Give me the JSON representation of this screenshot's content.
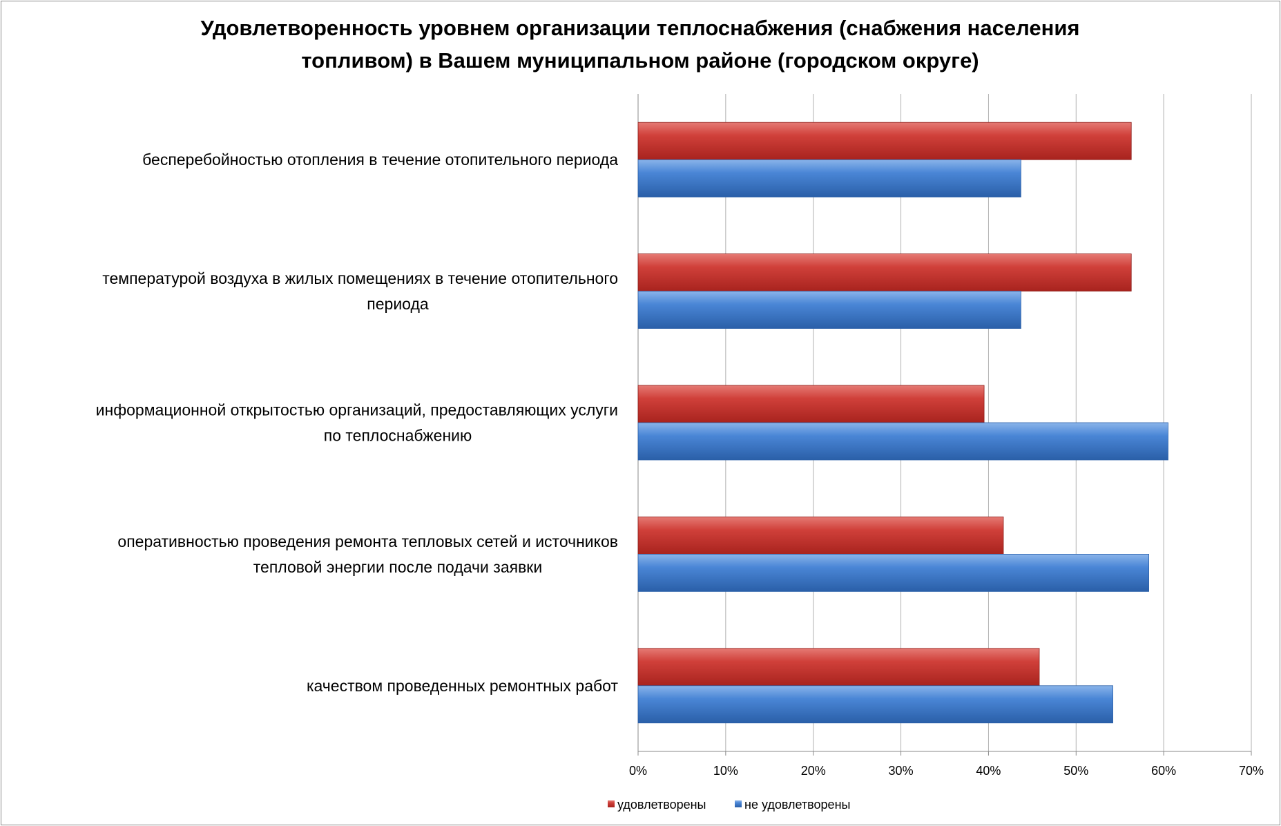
{
  "chart_data": {
    "type": "bar",
    "orientation": "horizontal",
    "title": [
      "Удовлетворенность уровнем организации теплоснабжения (снабжения населения",
      "топливом) в Вашем муниципальном районе (городском округе)"
    ],
    "categories": [
      [
        "бесперебойностью  отопления в течение отопительного периода"
      ],
      [
        "температурой  воздуха в жилых помещениях в течение отопительного",
        "периода"
      ],
      [
        "информационной открытостью  организаций, предоставляющих услуги",
        "по теплоснабжению"
      ],
      [
        "оперативностью проведения ремонта тепловых сетей и источников",
        "тепловой энергии после подачи заявки"
      ],
      [
        "качеством проведенных ремонтных работ"
      ]
    ],
    "series": [
      {
        "name": "удовлетворены",
        "color": "#C0392B",
        "values": [
          56.3,
          56.3,
          39.5,
          41.7,
          45.8
        ]
      },
      {
        "name": "не удовлетворены",
        "color": "#3B78C8",
        "values": [
          43.7,
          43.7,
          60.5,
          58.3,
          54.2
        ]
      }
    ],
    "xlim": [
      0,
      70
    ],
    "xticks": [
      "0%",
      "10%",
      "20%",
      "30%",
      "40%",
      "50%",
      "60%",
      "70%"
    ],
    "grid": true,
    "legend": "bottom"
  }
}
